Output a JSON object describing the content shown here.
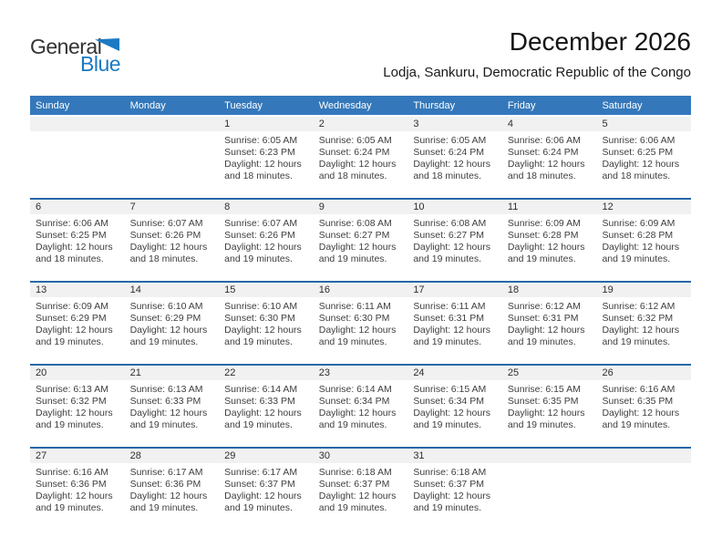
{
  "logo": {
    "part1": "General",
    "part2": "Blue"
  },
  "title": "December 2026",
  "subtitle": "Lodja, Sankuru, Democratic Republic of the Congo",
  "weekdays": [
    "Sunday",
    "Monday",
    "Tuesday",
    "Wednesday",
    "Thursday",
    "Friday",
    "Saturday"
  ],
  "labels": {
    "sunrise": "Sunrise:",
    "sunset": "Sunset:",
    "daylight": "Daylight:"
  },
  "colors": {
    "header_bg": "#3478BB",
    "row_border": "#2868A8",
    "band_bg": "#F1F1F1",
    "cell_text": "#3E3E3E",
    "logo_blue": "#1B7AC2"
  },
  "weeks": [
    [
      null,
      null,
      {
        "day": "1",
        "sunrise": "6:05 AM",
        "sunset": "6:23 PM",
        "daylight": "12 hours and 18 minutes."
      },
      {
        "day": "2",
        "sunrise": "6:05 AM",
        "sunset": "6:24 PM",
        "daylight": "12 hours and 18 minutes."
      },
      {
        "day": "3",
        "sunrise": "6:05 AM",
        "sunset": "6:24 PM",
        "daylight": "12 hours and 18 minutes."
      },
      {
        "day": "4",
        "sunrise": "6:06 AM",
        "sunset": "6:24 PM",
        "daylight": "12 hours and 18 minutes."
      },
      {
        "day": "5",
        "sunrise": "6:06 AM",
        "sunset": "6:25 PM",
        "daylight": "12 hours and 18 minutes."
      }
    ],
    [
      {
        "day": "6",
        "sunrise": "6:06 AM",
        "sunset": "6:25 PM",
        "daylight": "12 hours and 18 minutes."
      },
      {
        "day": "7",
        "sunrise": "6:07 AM",
        "sunset": "6:26 PM",
        "daylight": "12 hours and 18 minutes."
      },
      {
        "day": "8",
        "sunrise": "6:07 AM",
        "sunset": "6:26 PM",
        "daylight": "12 hours and 19 minutes."
      },
      {
        "day": "9",
        "sunrise": "6:08 AM",
        "sunset": "6:27 PM",
        "daylight": "12 hours and 19 minutes."
      },
      {
        "day": "10",
        "sunrise": "6:08 AM",
        "sunset": "6:27 PM",
        "daylight": "12 hours and 19 minutes."
      },
      {
        "day": "11",
        "sunrise": "6:09 AM",
        "sunset": "6:28 PM",
        "daylight": "12 hours and 19 minutes."
      },
      {
        "day": "12",
        "sunrise": "6:09 AM",
        "sunset": "6:28 PM",
        "daylight": "12 hours and 19 minutes."
      }
    ],
    [
      {
        "day": "13",
        "sunrise": "6:09 AM",
        "sunset": "6:29 PM",
        "daylight": "12 hours and 19 minutes."
      },
      {
        "day": "14",
        "sunrise": "6:10 AM",
        "sunset": "6:29 PM",
        "daylight": "12 hours and 19 minutes."
      },
      {
        "day": "15",
        "sunrise": "6:10 AM",
        "sunset": "6:30 PM",
        "daylight": "12 hours and 19 minutes."
      },
      {
        "day": "16",
        "sunrise": "6:11 AM",
        "sunset": "6:30 PM",
        "daylight": "12 hours and 19 minutes."
      },
      {
        "day": "17",
        "sunrise": "6:11 AM",
        "sunset": "6:31 PM",
        "daylight": "12 hours and 19 minutes."
      },
      {
        "day": "18",
        "sunrise": "6:12 AM",
        "sunset": "6:31 PM",
        "daylight": "12 hours and 19 minutes."
      },
      {
        "day": "19",
        "sunrise": "6:12 AM",
        "sunset": "6:32 PM",
        "daylight": "12 hours and 19 minutes."
      }
    ],
    [
      {
        "day": "20",
        "sunrise": "6:13 AM",
        "sunset": "6:32 PM",
        "daylight": "12 hours and 19 minutes."
      },
      {
        "day": "21",
        "sunrise": "6:13 AM",
        "sunset": "6:33 PM",
        "daylight": "12 hours and 19 minutes."
      },
      {
        "day": "22",
        "sunrise": "6:14 AM",
        "sunset": "6:33 PM",
        "daylight": "12 hours and 19 minutes."
      },
      {
        "day": "23",
        "sunrise": "6:14 AM",
        "sunset": "6:34 PM",
        "daylight": "12 hours and 19 minutes."
      },
      {
        "day": "24",
        "sunrise": "6:15 AM",
        "sunset": "6:34 PM",
        "daylight": "12 hours and 19 minutes."
      },
      {
        "day": "25",
        "sunrise": "6:15 AM",
        "sunset": "6:35 PM",
        "daylight": "12 hours and 19 minutes."
      },
      {
        "day": "26",
        "sunrise": "6:16 AM",
        "sunset": "6:35 PM",
        "daylight": "12 hours and 19 minutes."
      }
    ],
    [
      {
        "day": "27",
        "sunrise": "6:16 AM",
        "sunset": "6:36 PM",
        "daylight": "12 hours and 19 minutes."
      },
      {
        "day": "28",
        "sunrise": "6:17 AM",
        "sunset": "6:36 PM",
        "daylight": "12 hours and 19 minutes."
      },
      {
        "day": "29",
        "sunrise": "6:17 AM",
        "sunset": "6:37 PM",
        "daylight": "12 hours and 19 minutes."
      },
      {
        "day": "30",
        "sunrise": "6:18 AM",
        "sunset": "6:37 PM",
        "daylight": "12 hours and 19 minutes."
      },
      {
        "day": "31",
        "sunrise": "6:18 AM",
        "sunset": "6:37 PM",
        "daylight": "12 hours and 19 minutes."
      },
      null,
      null
    ]
  ]
}
